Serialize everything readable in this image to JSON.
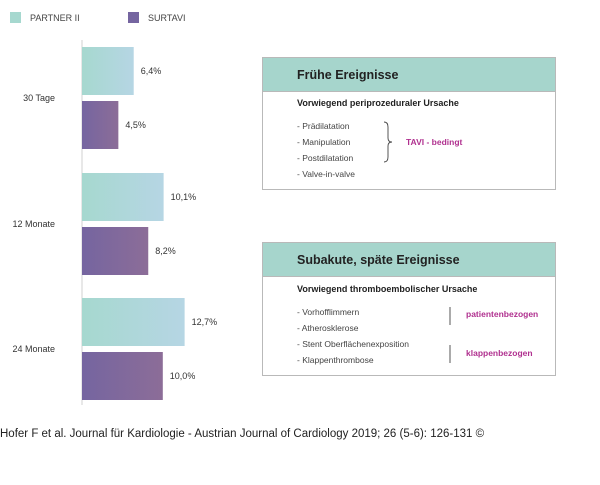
{
  "colors": {
    "partner": "#a6d8cf",
    "partner_light": "#b6d6e4",
    "surtavi": "#7565a0",
    "surtavi_light": "#8c6d98",
    "accent": "#b0308f"
  },
  "legend": [
    {
      "label": "PARTNER II",
      "color": "#a6d8cf"
    },
    {
      "label": "SURTAVI",
      "color": "#7565a0"
    }
  ],
  "chart_data": {
    "type": "bar",
    "orientation": "horizontal",
    "categories": [
      "30 Tage",
      "12 Monate",
      "24 Monate"
    ],
    "series": [
      {
        "name": "PARTNER II",
        "values": [
          6.4,
          10.1,
          12.7
        ],
        "labels": [
          "6,4%",
          "10,1%",
          "12,7%"
        ]
      },
      {
        "name": "SURTAVI",
        "values": [
          4.5,
          8.2,
          10.0
        ],
        "labels": [
          "4,5%",
          "8,2%",
          "10,0%"
        ]
      }
    ],
    "xlim": [
      0,
      15
    ],
    "grid": false,
    "legend_position": "top-left"
  },
  "box_early": {
    "title": "Frühe Ereignisse",
    "subtitle": "Vorwiegend periprozeduraler Ursache",
    "items": [
      "- Prädilatation",
      "- Manipulation",
      "- Postdilatation",
      "- Valve-in-valve"
    ],
    "tag": "TAVI - bedingt"
  },
  "box_late": {
    "title": "Subakute, späte Ereignisse",
    "subtitle": "Vorwiegend thromboembolischer Ursache",
    "items": [
      "- Vorhofflimmern",
      "- Atherosklerose",
      "- Stent Oberflächenexposition",
      "- Klappenthrombose"
    ],
    "tag_patient": "patientenbezogen",
    "tag_valve": "klappenbezogen"
  },
  "citation": "Hofer F et al. Journal für Kardiologie - Austrian Journal of Cardiology 2019; 26 (5-6): 126-131 ©"
}
